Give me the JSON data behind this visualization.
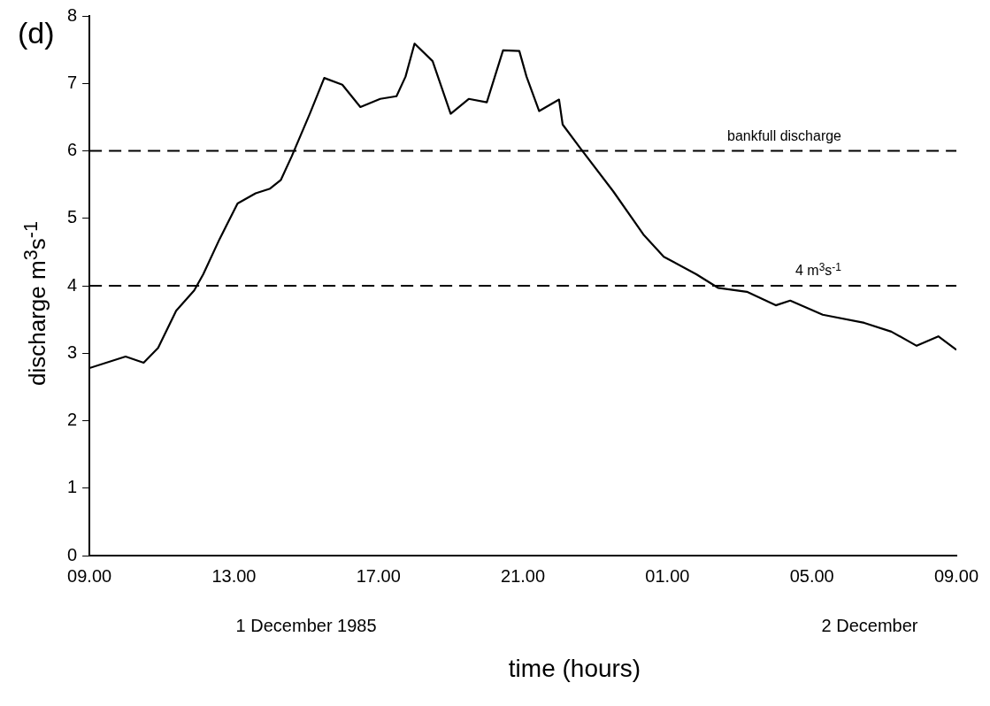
{
  "chart_data": {
    "type": "line",
    "title": "(d)",
    "xlabel": "time  (hours)",
    "ylabel": "discharge m$^{3}$s$^{-1}$",
    "x": [
      "1985-12-01T09:00",
      "1985-12-01T10:00",
      "1985-12-01T10:30",
      "1985-12-01T10:54",
      "1985-12-01T11:24",
      "1985-12-01T11:54",
      "1985-12-01T12:09",
      "1985-12-01T12:36",
      "1985-12-01T13:06",
      "1985-12-01T13:36",
      "1985-12-01T14:00",
      "1985-12-01T14:18",
      "1985-12-01T14:36",
      "1985-12-01T15:06",
      "1985-12-01T15:30",
      "1985-12-01T16:00",
      "1985-12-01T16:30",
      "1985-12-01T17:03",
      "1985-12-01T17:30",
      "1985-12-01T17:45",
      "1985-12-01T18:00",
      "1985-12-01T18:30",
      "1985-12-01T19:00",
      "1985-12-01T19:30",
      "1985-12-01T20:00",
      "1985-12-01T20:27",
      "1985-12-01T20:54",
      "1985-12-01T21:06",
      "1985-12-01T21:27",
      "1985-12-01T22:00",
      "1985-12-01T22:06",
      "1985-12-01T22:36",
      "1985-12-01T23:30",
      "1985-12-02T00:21",
      "1985-12-02T00:54",
      "1985-12-02T01:48",
      "1985-12-02T02:24",
      "1985-12-02T03:12",
      "1985-12-02T04:00",
      "1985-12-02T04:24",
      "1985-12-02T05:18",
      "1985-12-02T06:27",
      "1985-12-02T07:12",
      "1985-12-02T07:54",
      "1985-12-02T08:30",
      "1985-12-02T09:00"
    ],
    "series": [
      {
        "color": "#000000",
        "values": [
          2.78,
          2.95,
          2.86,
          3.08,
          3.63,
          3.93,
          4.17,
          4.69,
          5.22,
          5.37,
          5.44,
          5.57,
          5.92,
          6.55,
          7.08,
          6.98,
          6.65,
          6.77,
          6.81,
          7.1,
          7.59,
          7.33,
          6.55,
          6.77,
          6.72,
          7.49,
          7.48,
          7.1,
          6.59,
          6.76,
          6.39,
          6.03,
          5.4,
          4.75,
          4.43,
          4.17,
          3.97,
          3.91,
          3.71,
          3.78,
          3.57,
          3.45,
          3.32,
          3.11,
          3.25,
          3.05
        ]
      }
    ],
    "xlim": [
      "1985-12-01T09:00",
      "1985-12-02T09:00"
    ],
    "xticks": [
      {
        "value": "1985-12-01T09:00",
        "label": "09.00"
      },
      {
        "value": "1985-12-01T13:00",
        "label": "13.00"
      },
      {
        "value": "1985-12-01T17:00",
        "label": "17.00"
      },
      {
        "value": "1985-12-01T21:00",
        "label": "21.00"
      },
      {
        "value": "1985-12-02T01:00",
        "label": "01.00"
      },
      {
        "value": "1985-12-02T05:00",
        "label": "05.00"
      },
      {
        "value": "1985-12-02T09:00",
        "label": "09.00"
      }
    ],
    "ylim": [
      0,
      8
    ],
    "yticks": [
      0,
      1,
      2,
      3,
      4,
      5,
      6,
      7,
      8
    ],
    "ref_lines": [
      {
        "axis": "y",
        "value": 6,
        "label": "bankfull discharge",
        "line_style": "dashed"
      },
      {
        "axis": "y",
        "value": 4,
        "label": "4 m$^{3}$s$^{-1}$",
        "line_style": "dashed"
      }
    ],
    "annotations": [
      "1 December 1985",
      "2 December"
    ],
    "grid": false,
    "legend": false,
    "marker": "none",
    "line_style": "solid"
  }
}
